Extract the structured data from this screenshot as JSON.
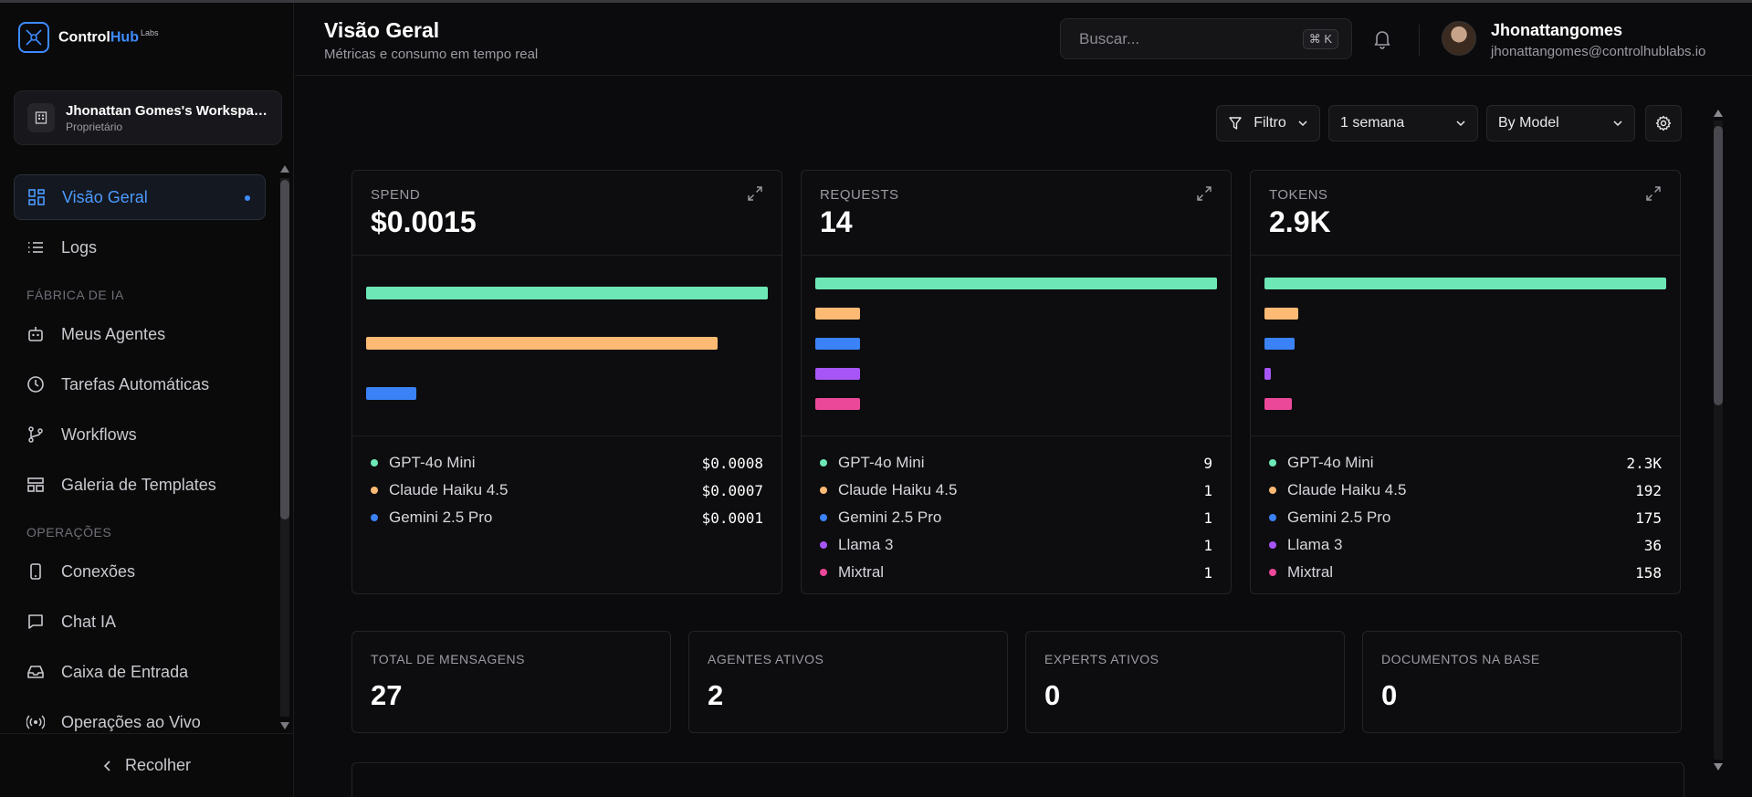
{
  "brand": {
    "name_a": "Control",
    "name_b": "Hub",
    "suffix": "Labs"
  },
  "workspace": {
    "name": "Jhonattan Gomes's Workspace",
    "role": "Proprietário"
  },
  "sidebar": {
    "items": [
      {
        "label": "Visão Geral",
        "icon": "dashboard-icon",
        "active": true
      },
      {
        "label": "Logs",
        "icon": "list-icon"
      }
    ],
    "section_ia": "FÁBRICA DE IA",
    "items_ia": [
      {
        "label": "Meus Agentes",
        "icon": "robot-icon"
      },
      {
        "label": "Tarefas Automáticas",
        "icon": "clock-icon"
      },
      {
        "label": "Workflows",
        "icon": "git-branch-icon"
      },
      {
        "label": "Galeria de Templates",
        "icon": "template-icon"
      }
    ],
    "section_ops": "OPERAÇÕES",
    "items_ops": [
      {
        "label": "Conexões",
        "icon": "phone-icon"
      },
      {
        "label": "Chat IA",
        "icon": "chat-icon"
      },
      {
        "label": "Caixa de Entrada",
        "icon": "inbox-icon"
      },
      {
        "label": "Operações ao Vivo",
        "icon": "broadcast-icon"
      }
    ],
    "collapse_label": "Recolher"
  },
  "header": {
    "title": "Visão Geral",
    "subtitle": "Métricas e consumo em tempo real",
    "search_placeholder": "Buscar...",
    "search_shortcut": "⌘ K",
    "user_name": "Jhonattangomes",
    "user_email": "jhonattangomes@controlhublabs.io"
  },
  "toolbar": {
    "filter_label": "Filtro",
    "period": "1 semana",
    "group_by": "By Model"
  },
  "colors": {
    "gpt": "#6ee7b7",
    "claude": "#fdba74",
    "gemini": "#3b82f6",
    "llama": "#a855f7",
    "mixtral": "#ec4899"
  },
  "cards": [
    {
      "caption": "SPEND",
      "value": "$0.0015",
      "rows": [
        {
          "name": "GPT-4o Mini",
          "display": "$0.0008",
          "value": 0.0008,
          "color": "#6ee7b7"
        },
        {
          "name": "Claude Haiku 4.5",
          "display": "$0.0007",
          "value": 0.0007,
          "color": "#fdba74"
        },
        {
          "name": "Gemini 2.5 Pro",
          "display": "$0.0001",
          "value": 0.0001,
          "color": "#3b82f6"
        }
      ]
    },
    {
      "caption": "REQUESTS",
      "value": "14",
      "rows": [
        {
          "name": "GPT-4o Mini",
          "display": "9",
          "value": 9,
          "color": "#6ee7b7"
        },
        {
          "name": "Claude Haiku 4.5",
          "display": "1",
          "value": 1,
          "color": "#fdba74"
        },
        {
          "name": "Gemini 2.5 Pro",
          "display": "1",
          "value": 1,
          "color": "#3b82f6"
        },
        {
          "name": "Llama 3",
          "display": "1",
          "value": 1,
          "color": "#a855f7"
        },
        {
          "name": "Mixtral",
          "display": "1",
          "value": 1,
          "color": "#ec4899"
        }
      ]
    },
    {
      "caption": "TOKENS",
      "value": "2.9K",
      "rows": [
        {
          "name": "GPT-4o Mini",
          "display": "2.3K",
          "value": 2300,
          "color": "#6ee7b7"
        },
        {
          "name": "Claude Haiku 4.5",
          "display": "192",
          "value": 192,
          "color": "#fdba74"
        },
        {
          "name": "Gemini 2.5 Pro",
          "display": "175",
          "value": 175,
          "color": "#3b82f6"
        },
        {
          "name": "Llama 3",
          "display": "36",
          "value": 36,
          "color": "#a855f7"
        },
        {
          "name": "Mixtral",
          "display": "158",
          "value": 158,
          "color": "#ec4899"
        }
      ]
    }
  ],
  "stats": [
    {
      "caption": "TOTAL DE MENSAGENS",
      "value": "27"
    },
    {
      "caption": "AGENTES ATIVOS",
      "value": "2"
    },
    {
      "caption": "EXPERTS ATIVOS",
      "value": "0"
    },
    {
      "caption": "DOCUMENTOS NA BASE",
      "value": "0"
    }
  ]
}
